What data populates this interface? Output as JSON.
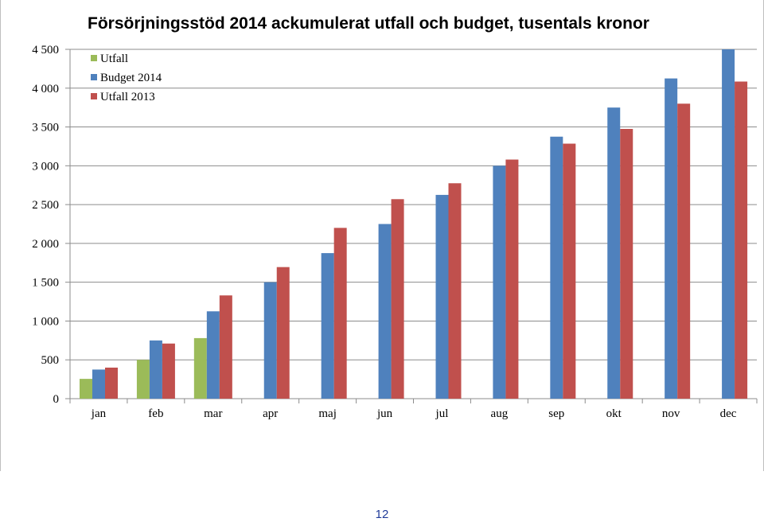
{
  "page_number": "12",
  "chart_data": {
    "type": "bar",
    "title": "Försörjningsstöd 2014 ackumulerat utfall och budget, tusentals kronor",
    "xlabel": "",
    "ylabel": "",
    "categories": [
      "jan",
      "feb",
      "mar",
      "apr",
      "maj",
      "jun",
      "jul",
      "aug",
      "sep",
      "okt",
      "nov",
      "dec"
    ],
    "ylim": [
      0,
      4500
    ],
    "yticks": [
      0,
      500,
      1000,
      1500,
      2000,
      2500,
      3000,
      3500,
      4000,
      4500
    ],
    "ytick_labels": [
      "0",
      "500",
      "1 000",
      "1 500",
      "2 000",
      "2 500",
      "3 000",
      "3 500",
      "4 000",
      "4 500"
    ],
    "grid": true,
    "legend_position": "top-left",
    "series": [
      {
        "name": "Utfall",
        "color": "#9bbb59",
        "values": [
          255,
          500,
          780,
          null,
          null,
          null,
          null,
          null,
          null,
          null,
          null,
          null
        ]
      },
      {
        "name": "Budget 2014",
        "color": "#4f81bd",
        "values": [
          375,
          750,
          1125,
          1500,
          1875,
          2250,
          2625,
          3000,
          3375,
          3750,
          4125,
          4500
        ]
      },
      {
        "name": "Utfall 2013",
        "color": "#c0504d",
        "values": [
          400,
          710,
          1330,
          1695,
          2200,
          2570,
          2775,
          3080,
          3285,
          3475,
          3800,
          4085
        ]
      }
    ]
  }
}
